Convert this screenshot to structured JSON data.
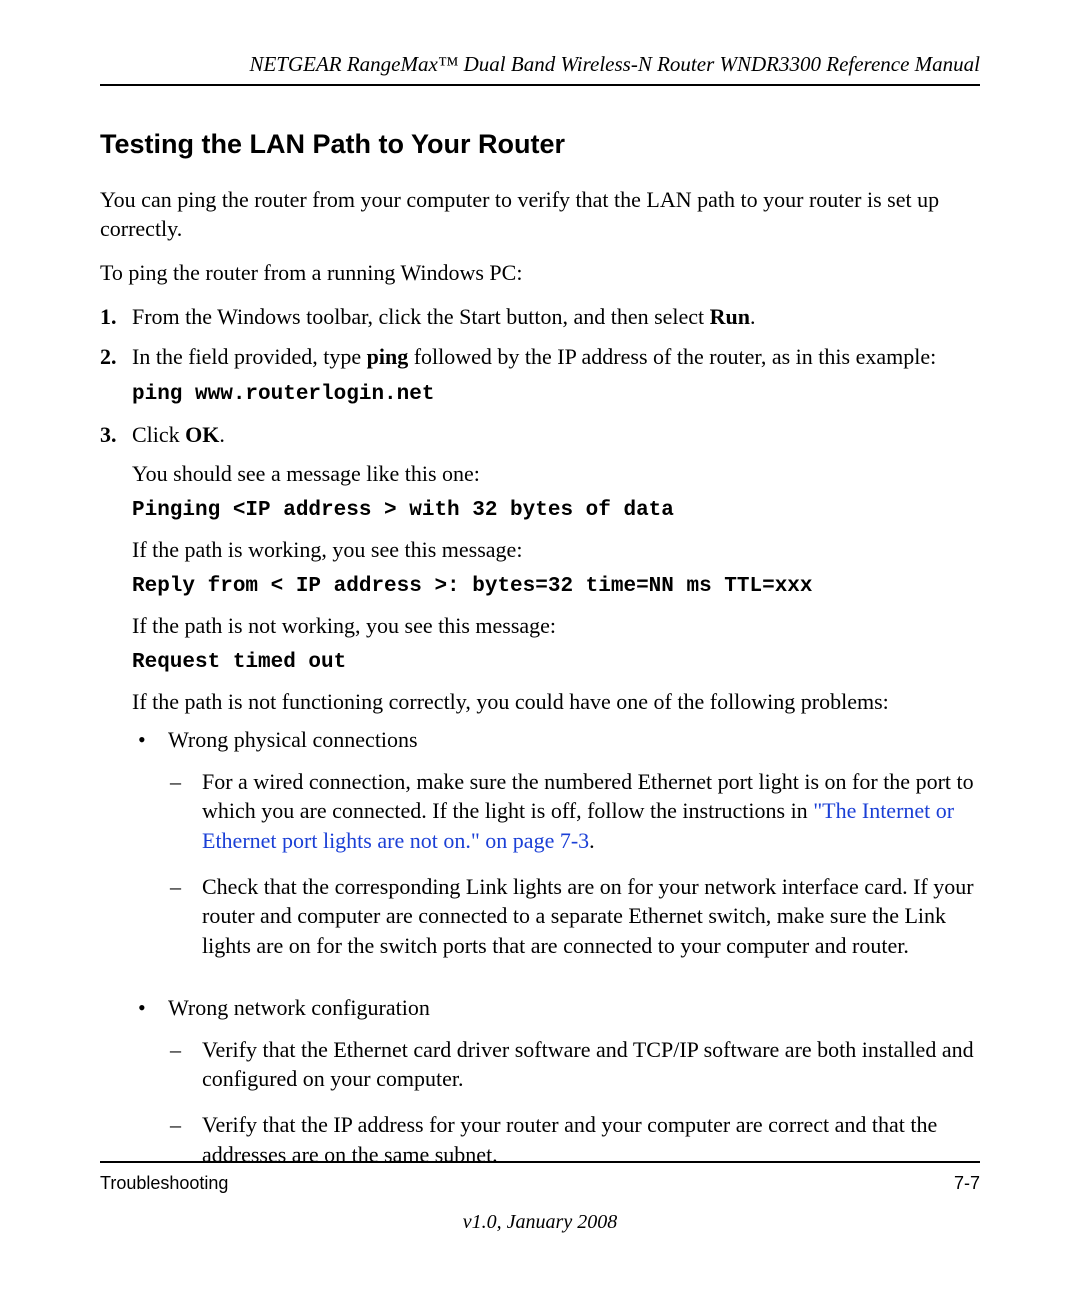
{
  "header": {
    "title": "NETGEAR RangeMax™ Dual Band Wireless-N Router WNDR3300 Reference Manual"
  },
  "section": {
    "heading": "Testing the LAN Path to Your Router",
    "intro": "You can ping the router from your computer to verify that the LAN path to your router is set up correctly.",
    "lead_in": "To ping the router from a running Windows PC:"
  },
  "steps": {
    "s1": {
      "num": "1.",
      "pre": "From the Windows toolbar, click the Start button, and then select ",
      "bold": "Run",
      "post": "."
    },
    "s2": {
      "num": "2.",
      "pre": "In the field provided, type ",
      "bold": "ping",
      "post": " followed by the IP address of the router, as in this example:",
      "code": "ping www.routerlogin.net"
    },
    "s3": {
      "num": "3.",
      "pre": "Click ",
      "bold": "OK",
      "post": "."
    }
  },
  "after_steps": {
    "msg_intro": "You should see a message like this one:",
    "code1": "Pinging <IP address > with 32 bytes of data",
    "working_intro": "If the path is working, you see this message:",
    "code2": "Reply from < IP address >: bytes=32 time=NN ms TTL=xxx",
    "notworking_intro": "If the path is not working, you see this message:",
    "code3": "Request timed out",
    "problems_intro": "If the path is not functioning correctly, you could have one of the following problems:"
  },
  "bullets": {
    "b1": {
      "title": "Wrong physical connections",
      "sub1": {
        "pre": "For a wired connection, make sure the numbered Ethernet port light is on for the port to which you are connected. If the light is off, follow the instructions in ",
        "link": "\"The Internet or Ethernet port lights are not on.\" on page 7-3",
        "post": "."
      },
      "sub2": "Check that the corresponding Link lights are on for your network interface card. If your router and computer are connected to a separate Ethernet switch, make sure the Link lights are on for the switch ports that are connected to your computer and router."
    },
    "b2": {
      "title": "Wrong network configuration",
      "sub1": "Verify that the Ethernet card driver software and TCP/IP software are both installed and configured on your computer.",
      "sub2": "Verify that the IP address for your router and your computer are correct and that the addresses are on the same subnet."
    }
  },
  "footer": {
    "left": "Troubleshooting",
    "right": "7-7",
    "version": "v1.0, January 2008"
  },
  "colors": {
    "link": "#1a3fd6",
    "text": "#000000",
    "background": "#ffffff",
    "rule": "#000000"
  },
  "typography": {
    "body_font": "Times New Roman",
    "body_size_pt": 16,
    "heading_font": "Arial",
    "heading_size_pt": 20,
    "mono_font": "Courier New"
  }
}
